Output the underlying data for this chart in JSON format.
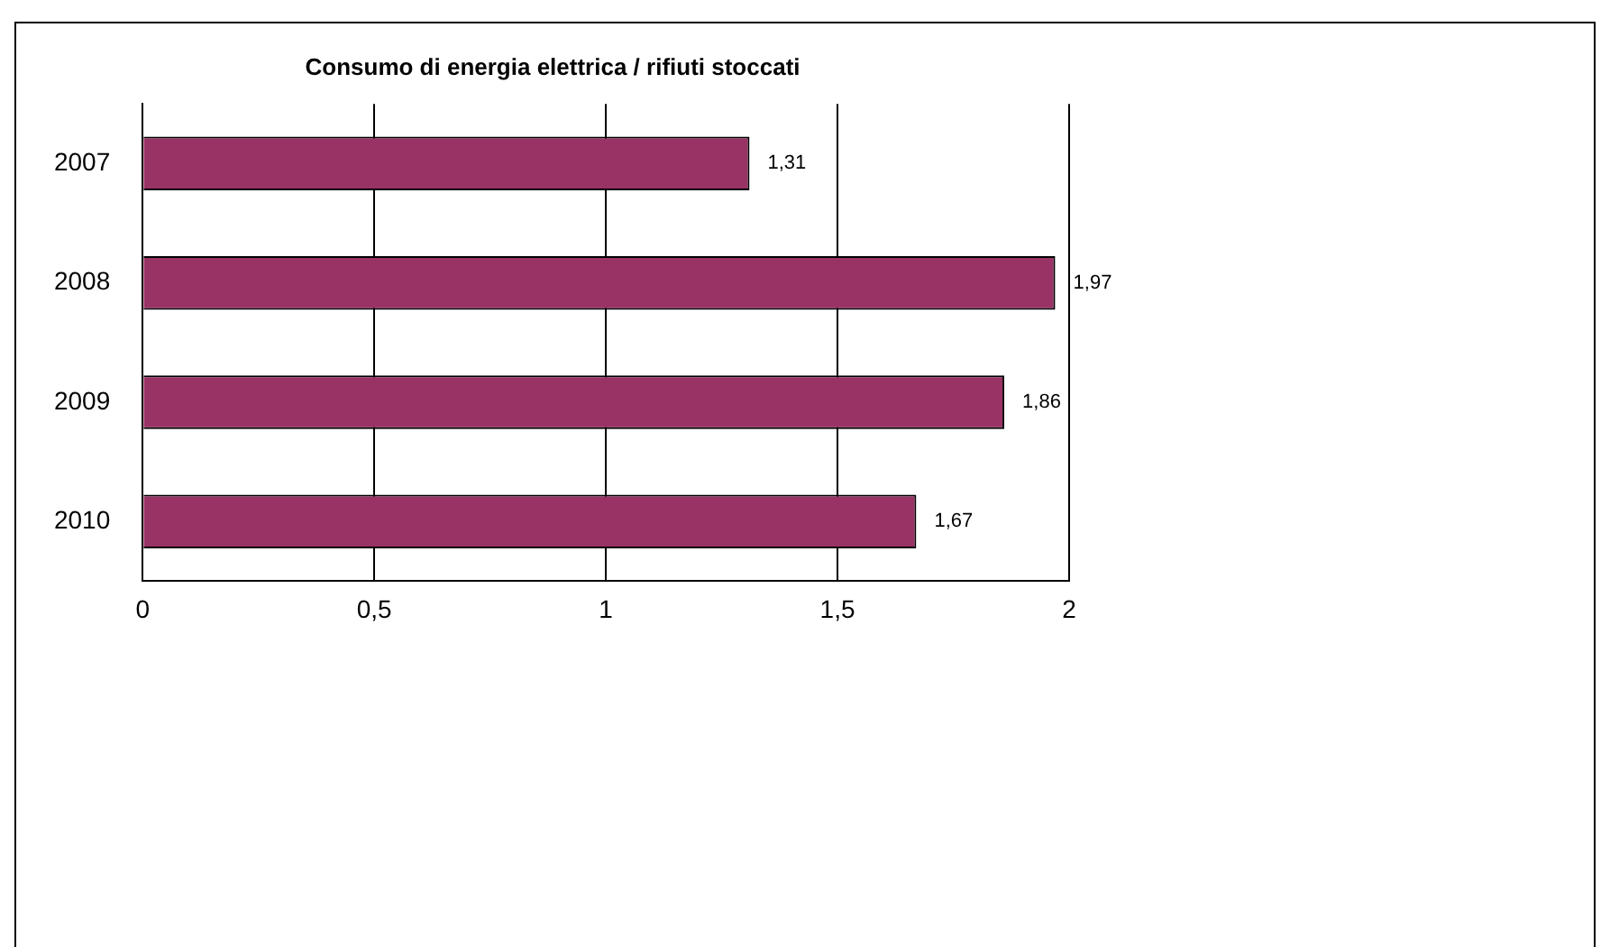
{
  "chart_data": {
    "type": "bar",
    "orientation": "horizontal",
    "title": "Consumo di energia elettrica / rifiuti stoccati",
    "categories": [
      "2007",
      "2008",
      "2009",
      "2010"
    ],
    "values": [
      1.31,
      1.97,
      1.86,
      1.67
    ],
    "value_labels": [
      "1,31",
      "1,97",
      "1,86",
      "1,67"
    ],
    "color": "#993366",
    "xlim": [
      0,
      2
    ],
    "xticks": [
      0,
      {
        "value": 0.5,
        "label": "0,5"
      },
      1,
      {
        "value": 1.5,
        "label": "1,5"
      },
      2
    ],
    "grid": "x",
    "legend": false
  }
}
